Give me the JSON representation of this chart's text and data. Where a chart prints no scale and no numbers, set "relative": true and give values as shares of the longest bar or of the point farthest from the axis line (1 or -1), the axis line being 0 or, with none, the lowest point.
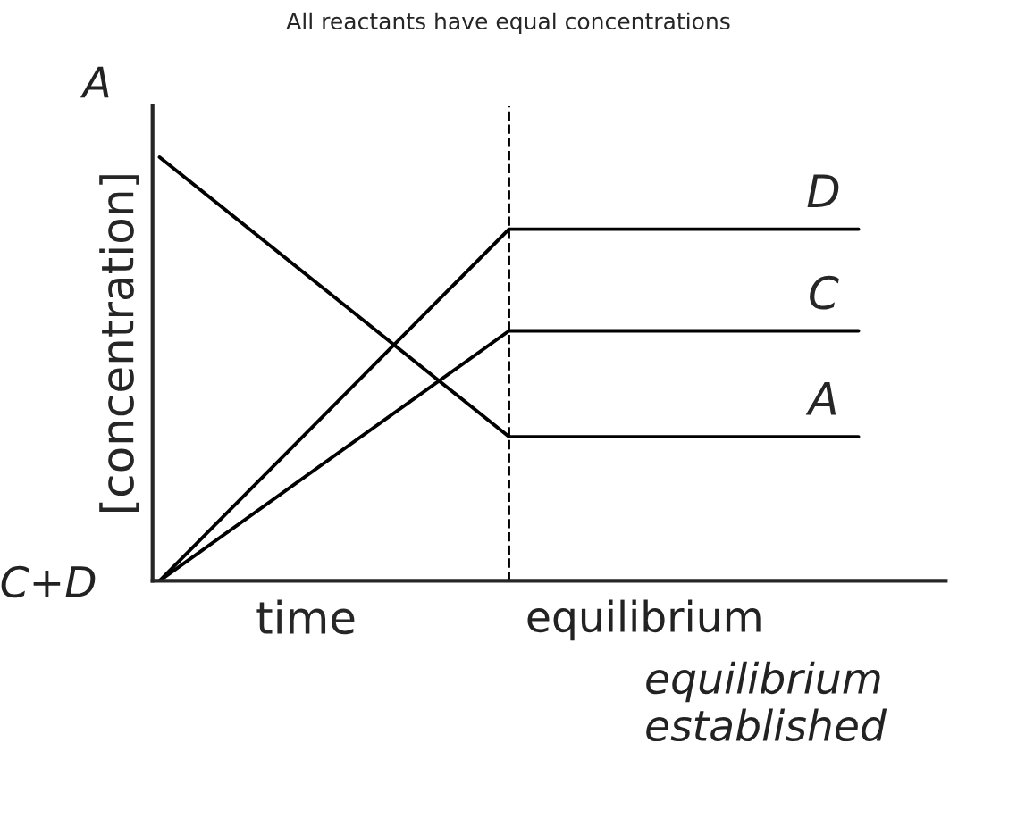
{
  "chart_data": {
    "type": "line",
    "title": "All reactants have equal concentrations",
    "xlabel": "time",
    "ylabel": "[concentration]",
    "relative": true,
    "categories": [
      null,
      null,
      null
    ],
    "series": [
      {
        "name": "A",
        "color": "#000000",
        "values": [
          1,
          0.34,
          0.34
        ]
      },
      {
        "name": "C",
        "color": "#000000",
        "values": [
          0,
          0.59,
          0.59
        ]
      },
      {
        "name": "D",
        "color": "#000000",
        "values": [
          0,
          0.83,
          0.83
        ]
      }
    ],
    "annotations": [
      "A",
      "C+D",
      "equilibrium",
      "equilibrium established"
    ],
    "marker": "none",
    "line_style": "solid",
    "grid": false,
    "legend": false
  }
}
